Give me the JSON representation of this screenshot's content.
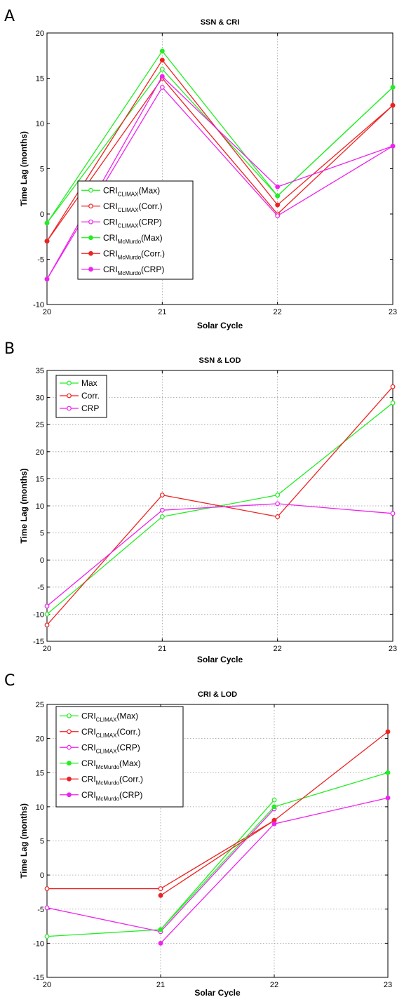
{
  "chart_data": [
    {
      "panel": "A",
      "type": "line",
      "title": "SSN & CRI",
      "xlabel": "Solar Cycle",
      "ylabel": "Time Lag (months)",
      "categories": [
        "20",
        "21",
        "22",
        "23"
      ],
      "ylim": [
        -10,
        20
      ],
      "yticks": [
        -10,
        -5,
        0,
        5,
        10,
        15,
        20
      ],
      "grid": "x-dotted",
      "legend_placement": "lower-left",
      "series": [
        {
          "name": "CRI",
          "sub": "CLIMAX",
          "suffix": "(Max)",
          "color": "#22ee22",
          "marker": "open-circle",
          "values": [
            -1,
            16,
            2,
            14
          ]
        },
        {
          "name": "CRI",
          "sub": "CLIMAX",
          "suffix": "(Corr.)",
          "color": "#ee2222",
          "marker": "open-circle",
          "values": [
            -3,
            15,
            0,
            12
          ]
        },
        {
          "name": "CRI",
          "sub": "CLIMAX",
          "suffix": "(CRP)",
          "color": "#ee22ee",
          "marker": "open-circle",
          "values": [
            -7.2,
            14,
            -0.2,
            7.5
          ]
        },
        {
          "name": "CRI",
          "sub": "McMurdo",
          "suffix": "(Max)",
          "color": "#22ee22",
          "marker": "filled-circle",
          "values": [
            -1,
            18,
            2,
            14
          ]
        },
        {
          "name": "CRI",
          "sub": "McMurdo",
          "suffix": "(Corr.)",
          "color": "#ee2222",
          "marker": "filled-circle",
          "values": [
            -3,
            17,
            1,
            12
          ]
        },
        {
          "name": "CRI",
          "sub": "McMurdo",
          "suffix": "(CRP)",
          "color": "#ee22ee",
          "marker": "filled-circle",
          "values": [
            -7.2,
            15.2,
            3,
            7.5
          ]
        }
      ]
    },
    {
      "panel": "B",
      "type": "line",
      "title": "SSN & LOD",
      "xlabel": "Solar Cycle",
      "ylabel": "Time Lag (months)",
      "categories": [
        "20",
        "21",
        "22",
        "23"
      ],
      "ylim": [
        -15,
        35
      ],
      "yticks": [
        -15,
        -10,
        -5,
        0,
        5,
        10,
        15,
        20,
        25,
        30,
        35
      ],
      "grid": "dotted",
      "legend_placement": "top-left",
      "series": [
        {
          "name": "Max",
          "sub": "",
          "suffix": "",
          "color": "#22ee22",
          "marker": "open-circle",
          "values": [
            -10,
            8,
            12,
            29
          ]
        },
        {
          "name": "Corr.",
          "sub": "",
          "suffix": "",
          "color": "#ee2222",
          "marker": "open-circle",
          "values": [
            -12,
            12,
            8,
            32
          ]
        },
        {
          "name": "CRP",
          "sub": "",
          "suffix": "",
          "color": "#ee22ee",
          "marker": "open-circle",
          "values": [
            -8.5,
            9.2,
            10.4,
            8.6
          ]
        }
      ]
    },
    {
      "panel": "C",
      "type": "line",
      "title": "CRI & LOD",
      "xlabel": "Solar Cycle",
      "ylabel": "Time Lag (months)",
      "categories": [
        "20",
        "21",
        "22",
        "23"
      ],
      "ylim": [
        -15,
        25
      ],
      "yticks": [
        -15,
        -10,
        -5,
        0,
        5,
        10,
        15,
        20,
        25
      ],
      "grid": "dotted",
      "legend_placement": "top-left",
      "series": [
        {
          "name": "CRI",
          "sub": "CLIMAX",
          "suffix": "(Max)",
          "color": "#22ee22",
          "marker": "open-circle",
          "values": [
            -9,
            -8,
            11,
            null
          ]
        },
        {
          "name": "CRI",
          "sub": "CLIMAX",
          "suffix": "(Corr.)",
          "color": "#ee2222",
          "marker": "open-circle",
          "values": [
            -2,
            -2,
            8,
            null
          ]
        },
        {
          "name": "CRI",
          "sub": "CLIMAX",
          "suffix": "(CRP)",
          "color": "#ee22ee",
          "marker": "open-circle",
          "values": [
            -4.8,
            -8.3,
            9.7,
            null
          ]
        },
        {
          "name": "CRI",
          "sub": "McMurdo",
          "suffix": "(Max)",
          "color": "#22ee22",
          "marker": "filled-circle",
          "values": [
            null,
            -8,
            10,
            15
          ]
        },
        {
          "name": "CRI",
          "sub": "McMurdo",
          "suffix": "(Corr.)",
          "color": "#ee2222",
          "marker": "filled-circle",
          "values": [
            null,
            -3,
            8,
            21
          ]
        },
        {
          "name": "CRI",
          "sub": "McMurdo",
          "suffix": "(CRP)",
          "color": "#ee22ee",
          "marker": "filled-circle",
          "values": [
            null,
            -10,
            7.5,
            11.3
          ]
        }
      ]
    }
  ]
}
